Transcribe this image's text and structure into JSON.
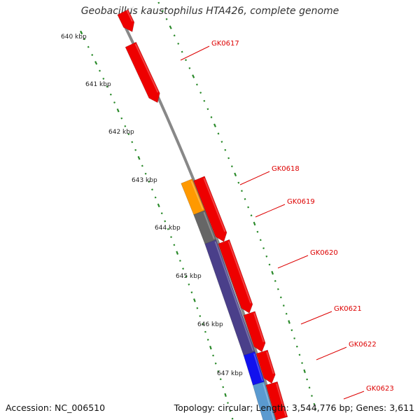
{
  "title": "Geobacillus kaustophilus HTA426, complete genome",
  "footer": {
    "accession": "Accession: NC_006510",
    "summary": "Topology: circular; Length: 3,544,776 bp; Genes: 3,611"
  },
  "colors": {
    "backbone": "#888888",
    "tick": "#2a8a2a",
    "gene_label": "#dd0000",
    "red": "#ee0000",
    "orange": "#ff9900",
    "gray": "#666666",
    "slate": "#4a3f8a",
    "blue": "#1111ee",
    "lightblue": "#5a9ad0",
    "teal": "#22bbbb"
  },
  "kbp_labels": [
    "640 kbp",
    "641 kbp",
    "642 kbp",
    "643 kbp",
    "644 kbp",
    "645 kbp",
    "646 kbp",
    "647 kbp"
  ],
  "gene_labels": [
    "GK0617",
    "GK0618",
    "GK0619",
    "GK0620",
    "GK0621",
    "GK0622",
    "GK0623"
  ]
}
